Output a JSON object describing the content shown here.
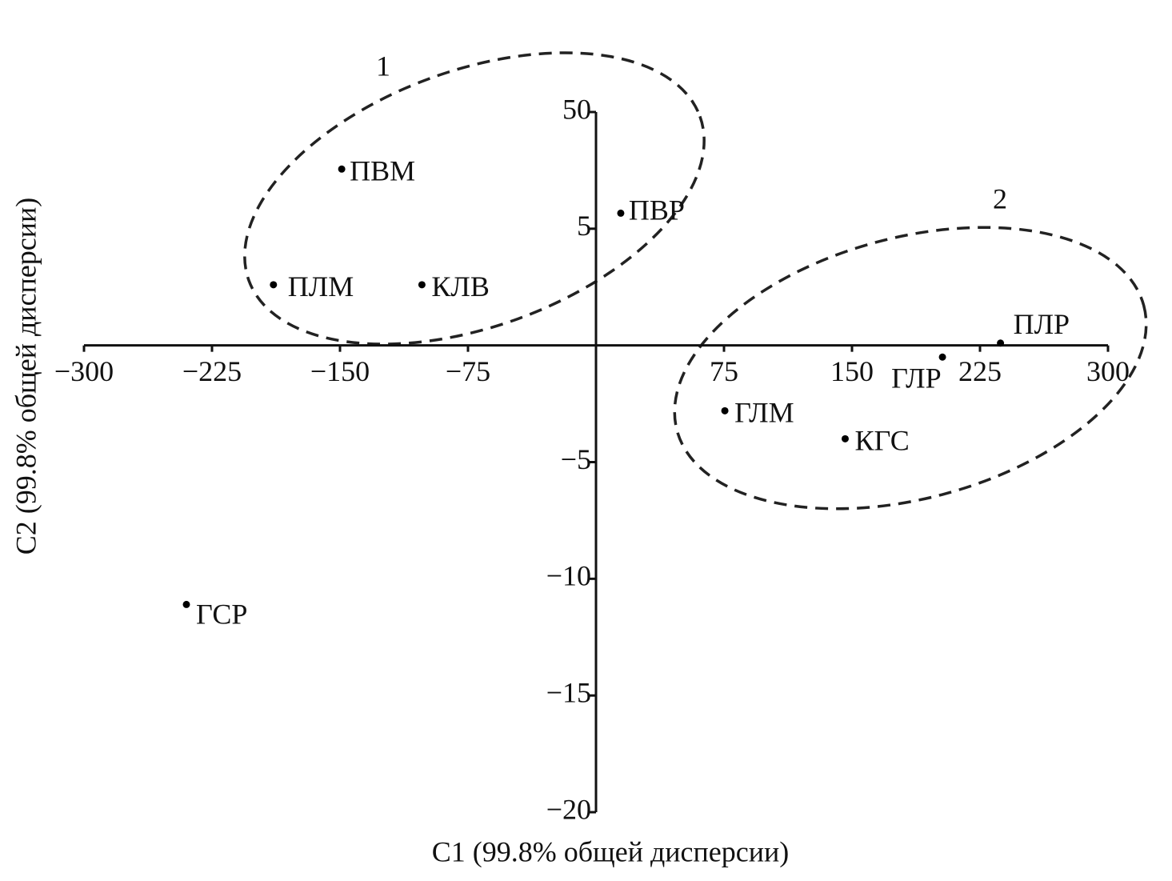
{
  "chart_data": {
    "type": "scatter",
    "x_label": "C1 (99.8% общей дисперсии)",
    "y_label": "C2 (99.8% общей дисперсии)",
    "labels": [
      "ПВМ",
      "ПВР",
      "ПЛМ",
      "КЛВ",
      "ПЛР",
      "ГЛР",
      "ГЛМ",
      "КГС",
      "ГСР"
    ],
    "x": [
      -149,
      14.5,
      -189,
      -102,
      237,
      203,
      75.5,
      146,
      -240
    ],
    "values": [
      28,
      11,
      2.6,
      2.6,
      0.1,
      -0.5,
      -2.8,
      -4.0,
      -11.1
    ],
    "color": "#000000",
    "xlim": [
      -300,
      300
    ],
    "xticks": [
      {
        "value": -300,
        "label": "−300"
      },
      {
        "value": -225,
        "label": "−225"
      },
      {
        "value": -150,
        "label": "−150"
      },
      {
        "value": -75,
        "label": "−75"
      },
      75,
      150,
      225,
      300
    ],
    "ylim": [
      -20,
      50
    ],
    "yticks": [
      50,
      5,
      {
        "value": -5,
        "label": "−5"
      },
      {
        "value": -10,
        "label": "−10"
      },
      {
        "value": -15,
        "label": "−15"
      },
      {
        "value": -20,
        "label": "−20"
      }
    ],
    "annotations": [
      "1",
      "2"
    ]
  }
}
